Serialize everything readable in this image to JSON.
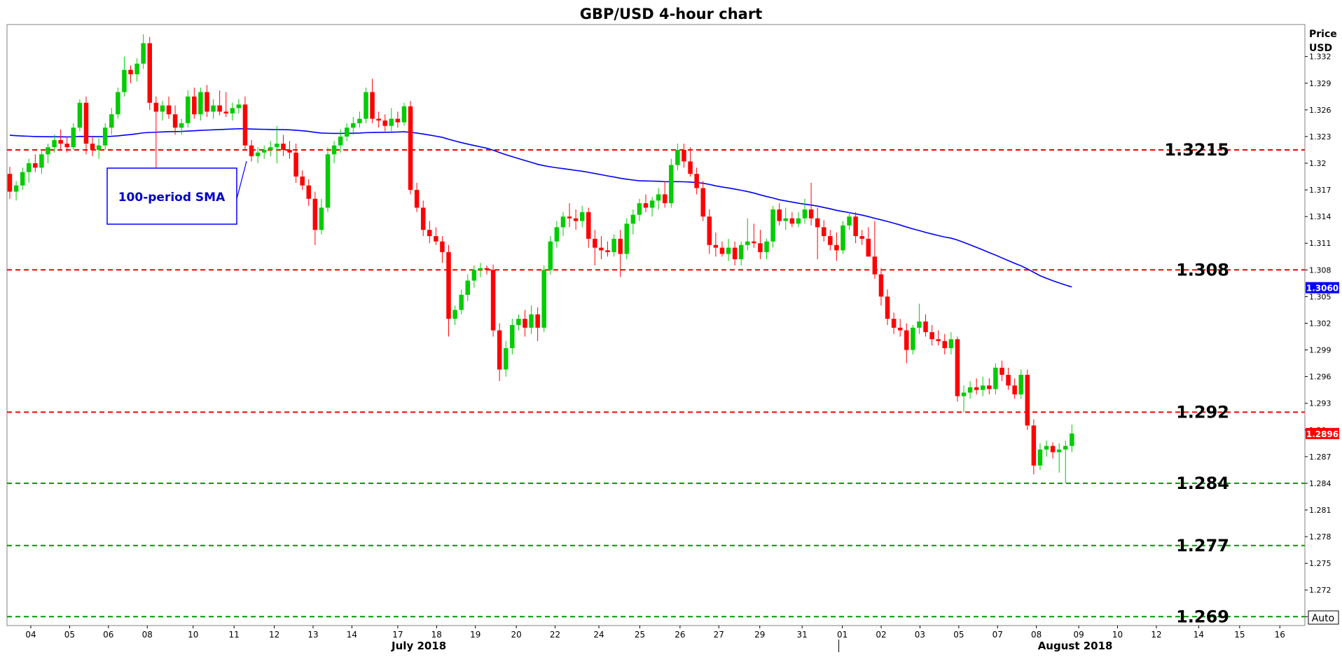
{
  "title": "GBP/USD 4-hour chart",
  "axis_title_line1": "Price",
  "axis_title_line2": "USD",
  "auto_label": "Auto",
  "sma_label": "100-period SMA",
  "colors": {
    "up": "#00cc00",
    "down": "#ff0000",
    "sma": "#0000ff",
    "resistance": "#ff0000",
    "support": "#009900",
    "badge_sma": "#0000ff",
    "badge_price": "#ff0000"
  },
  "chart_data": {
    "type": "candlestick",
    "title": "GBP/USD 4-hour chart",
    "ylabel": "Price USD",
    "ylim": [
      1.268,
      1.3356
    ],
    "yticks": [
      "1.332",
      "1.329",
      "1.326",
      "1.323",
      "1.32",
      "1.317",
      "1.314",
      "1.311",
      "1.308",
      "1.305",
      "1.302",
      "1.299",
      "1.296",
      "1.293",
      "1.29",
      "1.287",
      "1.284",
      "1.281",
      "1.278",
      "1.275",
      "1.272",
      "1.269"
    ],
    "x_ticks": [
      {
        "label": "04",
        "pos": 0.0
      },
      {
        "label": "05",
        "pos": 5.5
      },
      {
        "label": "06",
        "pos": 11.0
      },
      {
        "label": "08",
        "pos": 16.5
      },
      {
        "label": "10",
        "pos": 23.0
      },
      {
        "label": "11",
        "pos": 28.8
      },
      {
        "label": "12",
        "pos": 34.5
      },
      {
        "label": "13",
        "pos": 40.0
      },
      {
        "label": "14",
        "pos": 45.5
      },
      {
        "label": "17",
        "pos": 52.0
      },
      {
        "label": "18",
        "pos": 57.5
      },
      {
        "label": "19",
        "pos": 63.0
      },
      {
        "label": "20",
        "pos": 68.8
      },
      {
        "label": "22",
        "pos": 74.3
      },
      {
        "label": "24",
        "pos": 80.5
      },
      {
        "label": "25",
        "pos": 86.3
      },
      {
        "label": "26",
        "pos": 92.0
      },
      {
        "label": "27",
        "pos": 97.5
      },
      {
        "label": "29",
        "pos": 103.3
      },
      {
        "label": "31",
        "pos": 109.3
      },
      {
        "label": "01",
        "pos": 115.0
      },
      {
        "label": "02",
        "pos": 120.5
      },
      {
        "label": "03",
        "pos": 126.0
      },
      {
        "label": "05",
        "pos": 131.5
      },
      {
        "label": "07",
        "pos": 137.0
      },
      {
        "label": "08",
        "pos": 142.5
      },
      {
        "label": "09",
        "pos": 148.5
      },
      {
        "label": "10",
        "pos": 154.0
      },
      {
        "label": "12",
        "pos": 159.5
      },
      {
        "label": "14",
        "pos": 165.5
      },
      {
        "label": "15",
        "pos": 171.3
      },
      {
        "label": "16",
        "pos": 177.0
      }
    ],
    "month_labels": [
      {
        "label": "July 2018",
        "pos": 55.0
      },
      {
        "label": "August 2018",
        "pos": 148.0
      }
    ],
    "levels": [
      {
        "label": "1.3215",
        "value": 1.3215,
        "kind": "resistance"
      },
      {
        "label": "1.308",
        "value": 1.308,
        "kind": "resistance"
      },
      {
        "label": "1.292",
        "value": 1.292,
        "kind": "resistance"
      },
      {
        "label": "1.284",
        "value": 1.284,
        "kind": "support"
      },
      {
        "label": "1.277",
        "value": 1.277,
        "kind": "support"
      },
      {
        "label": "1.269",
        "value": 1.269,
        "kind": "support"
      }
    ],
    "last_price": {
      "label": "1.2896",
      "value": 1.2896
    },
    "sma_last": {
      "label": "1.3060",
      "value": 1.306
    },
    "candles": [
      [
        1.3188,
        1.3196,
        1.316,
        1.3168
      ],
      [
        1.3168,
        1.318,
        1.3158,
        1.3175
      ],
      [
        1.3175,
        1.3195,
        1.317,
        1.319
      ],
      [
        1.319,
        1.3205,
        1.3178,
        1.32
      ],
      [
        1.32,
        1.321,
        1.319,
        1.3195
      ],
      [
        1.3195,
        1.3215,
        1.3188,
        1.321
      ],
      [
        1.321,
        1.3222,
        1.32,
        1.3218
      ],
      [
        1.3218,
        1.3232,
        1.3212,
        1.3226
      ],
      [
        1.3226,
        1.3238,
        1.3215,
        1.3222
      ],
      [
        1.3222,
        1.323,
        1.3212,
        1.3218
      ],
      [
        1.3218,
        1.3245,
        1.3215,
        1.324
      ],
      [
        1.324,
        1.3272,
        1.3236,
        1.3268
      ],
      [
        1.3268,
        1.3275,
        1.321,
        1.3222
      ],
      [
        1.3222,
        1.323,
        1.3208,
        1.3215
      ],
      [
        1.3215,
        1.3228,
        1.3205,
        1.322
      ],
      [
        1.322,
        1.3245,
        1.3215,
        1.324
      ],
      [
        1.324,
        1.3262,
        1.3232,
        1.3255
      ],
      [
        1.3255,
        1.3285,
        1.325,
        1.328
      ],
      [
        1.328,
        1.332,
        1.3275,
        1.3305
      ],
      [
        1.3305,
        1.331,
        1.329,
        1.33
      ],
      [
        1.33,
        1.3318,
        1.3292,
        1.3312
      ],
      [
        1.3312,
        1.3345,
        1.3306,
        1.3335
      ],
      [
        1.3335,
        1.3342,
        1.326,
        1.3268
      ],
      [
        1.3268,
        1.3275,
        1.3195,
        1.3258
      ],
      [
        1.3258,
        1.327,
        1.3248,
        1.3265
      ],
      [
        1.3265,
        1.3275,
        1.325,
        1.3255
      ],
      [
        1.3255,
        1.3265,
        1.3232,
        1.324
      ],
      [
        1.324,
        1.325,
        1.3232,
        1.3245
      ],
      [
        1.3245,
        1.3282,
        1.324,
        1.3275
      ],
      [
        1.3275,
        1.3285,
        1.325,
        1.3255
      ],
      [
        1.3255,
        1.3285,
        1.3248,
        1.328
      ],
      [
        1.328,
        1.3288,
        1.3252,
        1.3258
      ],
      [
        1.3258,
        1.3272,
        1.325,
        1.3265
      ],
      [
        1.3265,
        1.3282,
        1.3254,
        1.3258
      ],
      [
        1.3258,
        1.328,
        1.3252,
        1.3256
      ],
      [
        1.3256,
        1.3268,
        1.3248,
        1.3262
      ],
      [
        1.3262,
        1.3272,
        1.3256,
        1.3266
      ],
      [
        1.3266,
        1.3275,
        1.3215,
        1.322
      ],
      [
        1.322,
        1.3226,
        1.3202,
        1.3208
      ],
      [
        1.3208,
        1.3218,
        1.32,
        1.3212
      ],
      [
        1.3212,
        1.322,
        1.3205,
        1.3215
      ],
      [
        1.3215,
        1.3225,
        1.3208,
        1.3218
      ],
      [
        1.3218,
        1.3242,
        1.32,
        1.3222
      ],
      [
        1.3222,
        1.3232,
        1.3208,
        1.3215
      ],
      [
        1.3215,
        1.3225,
        1.3205,
        1.3212
      ],
      [
        1.3212,
        1.3222,
        1.3178,
        1.3185
      ],
      [
        1.3185,
        1.3192,
        1.317,
        1.3175
      ],
      [
        1.3175,
        1.3182,
        1.3152,
        1.316
      ],
      [
        1.316,
        1.3168,
        1.3108,
        1.3125
      ],
      [
        1.3125,
        1.316,
        1.312,
        1.315
      ],
      [
        1.315,
        1.3218,
        1.3145,
        1.321
      ],
      [
        1.321,
        1.3225,
        1.32,
        1.322
      ],
      [
        1.322,
        1.3238,
        1.3212,
        1.323
      ],
      [
        1.323,
        1.3245,
        1.3225,
        1.324
      ],
      [
        1.324,
        1.3252,
        1.3232,
        1.3245
      ],
      [
        1.3245,
        1.3258,
        1.324,
        1.325
      ],
      [
        1.325,
        1.3285,
        1.3245,
        1.328
      ],
      [
        1.328,
        1.3295,
        1.3245,
        1.325
      ],
      [
        1.325,
        1.3258,
        1.324,
        1.3248
      ],
      [
        1.3248,
        1.3255,
        1.3236,
        1.3242
      ],
      [
        1.3242,
        1.3262,
        1.3236,
        1.325
      ],
      [
        1.325,
        1.3258,
        1.324,
        1.3246
      ],
      [
        1.3246,
        1.3268,
        1.3242,
        1.3264
      ],
      [
        1.3264,
        1.327,
        1.3165,
        1.317
      ],
      [
        1.317,
        1.3178,
        1.3145,
        1.315
      ],
      [
        1.315,
        1.3158,
        1.3118,
        1.3125
      ],
      [
        1.3125,
        1.3135,
        1.311,
        1.3118
      ],
      [
        1.3118,
        1.3128,
        1.3108,
        1.3112
      ],
      [
        1.3112,
        1.3118,
        1.3088,
        1.31
      ],
      [
        1.31,
        1.3108,
        1.3005,
        1.3025
      ],
      [
        1.3025,
        1.304,
        1.3018,
        1.3035
      ],
      [
        1.3035,
        1.3058,
        1.303,
        1.3052
      ],
      [
        1.3052,
        1.3075,
        1.3045,
        1.3068
      ],
      [
        1.3068,
        1.3085,
        1.306,
        1.308
      ],
      [
        1.308,
        1.3088,
        1.3072,
        1.3082
      ],
      [
        1.3082,
        1.3085,
        1.3075,
        1.308
      ],
      [
        1.308,
        1.3086,
        1.3005,
        1.3012
      ],
      [
        1.3012,
        1.302,
        1.2955,
        1.2968
      ],
      [
        1.2968,
        1.3,
        1.296,
        1.2992
      ],
      [
        1.2992,
        1.3025,
        1.2985,
        1.3018
      ],
      [
        1.3018,
        1.303,
        1.3012,
        1.3025
      ],
      [
        1.3025,
        1.3035,
        1.3005,
        1.3015
      ],
      [
        1.3015,
        1.304,
        1.3008,
        1.303
      ],
      [
        1.303,
        1.3038,
        1.3,
        1.3015
      ],
      [
        1.3015,
        1.3085,
        1.301,
        1.308
      ],
      [
        1.308,
        1.3118,
        1.3075,
        1.3112
      ],
      [
        1.3112,
        1.3135,
        1.3105,
        1.3128
      ],
      [
        1.3128,
        1.3145,
        1.3118,
        1.314
      ],
      [
        1.314,
        1.3155,
        1.3128,
        1.3138
      ],
      [
        1.3138,
        1.3148,
        1.3125,
        1.3135
      ],
      [
        1.3135,
        1.3152,
        1.3128,
        1.3145
      ],
      [
        1.3145,
        1.315,
        1.3105,
        1.3115
      ],
      [
        1.3115,
        1.3125,
        1.3085,
        1.3105
      ],
      [
        1.3105,
        1.3118,
        1.3092,
        1.3102
      ],
      [
        1.3102,
        1.3112,
        1.3095,
        1.31
      ],
      [
        1.31,
        1.312,
        1.3095,
        1.3115
      ],
      [
        1.3115,
        1.3125,
        1.3072,
        1.3098
      ],
      [
        1.3098,
        1.3138,
        1.3092,
        1.3132
      ],
      [
        1.3132,
        1.3148,
        1.312,
        1.3142
      ],
      [
        1.3142,
        1.316,
        1.3135,
        1.3155
      ],
      [
        1.3155,
        1.3165,
        1.3145,
        1.315
      ],
      [
        1.315,
        1.3162,
        1.314,
        1.3158
      ],
      [
        1.3158,
        1.3172,
        1.3148,
        1.3165
      ],
      [
        1.3165,
        1.318,
        1.315,
        1.3155
      ],
      [
        1.3155,
        1.3205,
        1.315,
        1.3198
      ],
      [
        1.3198,
        1.3222,
        1.3192,
        1.3215
      ],
      [
        1.3215,
        1.3222,
        1.3195,
        1.3202
      ],
      [
        1.3202,
        1.3218,
        1.3185,
        1.3188
      ],
      [
        1.3188,
        1.3195,
        1.3165,
        1.3172
      ],
      [
        1.3172,
        1.318,
        1.3135,
        1.314
      ],
      [
        1.314,
        1.3148,
        1.3098,
        1.3108
      ],
      [
        1.3108,
        1.3122,
        1.3095,
        1.3105
      ],
      [
        1.3105,
        1.3112,
        1.3095,
        1.3098
      ],
      [
        1.3098,
        1.3115,
        1.309,
        1.3105
      ],
      [
        1.3105,
        1.3112,
        1.3085,
        1.3092
      ],
      [
        1.3092,
        1.3112,
        1.3085,
        1.3108
      ],
      [
        1.3108,
        1.3138,
        1.3102,
        1.3112
      ],
      [
        1.3112,
        1.3132,
        1.3105,
        1.311
      ],
      [
        1.311,
        1.3125,
        1.3092,
        1.31
      ],
      [
        1.31,
        1.3115,
        1.3092,
        1.3112
      ],
      [
        1.3112,
        1.3152,
        1.3105,
        1.3148
      ],
      [
        1.3148,
        1.3155,
        1.313,
        1.3135
      ],
      [
        1.3135,
        1.315,
        1.3125,
        1.3138
      ],
      [
        1.3138,
        1.3145,
        1.3128,
        1.3132
      ],
      [
        1.3132,
        1.3145,
        1.3128,
        1.3138
      ],
      [
        1.3138,
        1.316,
        1.3132,
        1.3148
      ],
      [
        1.3148,
        1.3178,
        1.313,
        1.3138
      ],
      [
        1.3138,
        1.315,
        1.3092,
        1.3128
      ],
      [
        1.3128,
        1.3136,
        1.3112,
        1.3118
      ],
      [
        1.3118,
        1.3125,
        1.3102,
        1.3108
      ],
      [
        1.3108,
        1.3122,
        1.309,
        1.3102
      ],
      [
        1.3102,
        1.3135,
        1.3098,
        1.313
      ],
      [
        1.313,
        1.3145,
        1.3125,
        1.314
      ],
      [
        1.314,
        1.3145,
        1.311,
        1.3118
      ],
      [
        1.3118,
        1.3125,
        1.3108,
        1.3115
      ],
      [
        1.3115,
        1.3128,
        1.31,
        1.3095
      ],
      [
        1.3095,
        1.3135,
        1.307,
        1.3075
      ],
      [
        1.3075,
        1.3082,
        1.304,
        1.305
      ],
      [
        1.305,
        1.3058,
        1.3018,
        1.3025
      ],
      [
        1.3025,
        1.3032,
        1.3008,
        1.3015
      ],
      [
        1.3015,
        1.3025,
        1.3005,
        1.3012
      ],
      [
        1.3012,
        1.302,
        1.2975,
        1.299
      ],
      [
        1.299,
        1.3018,
        1.2985,
        1.3015
      ],
      [
        1.3015,
        1.3042,
        1.3008,
        1.3022
      ],
      [
        1.3022,
        1.303,
        1.3005,
        1.301
      ],
      [
        1.301,
        1.3018,
        1.2995,
        1.3002
      ],
      [
        1.3002,
        1.3012,
        1.2995,
        1.3
      ],
      [
        1.3,
        1.3008,
        1.2985,
        1.2992
      ],
      [
        1.2992,
        1.301,
        1.2985,
        1.3002
      ],
      [
        1.3002,
        1.3005,
        1.2932,
        1.2938
      ],
      [
        1.2938,
        1.295,
        1.292,
        1.2942
      ],
      [
        1.2942,
        1.2955,
        1.2935,
        1.2948
      ],
      [
        1.2948,
        1.2958,
        1.294,
        1.2945
      ],
      [
        1.2945,
        1.296,
        1.2938,
        1.295
      ],
      [
        1.295,
        1.2958,
        1.294,
        1.2946
      ],
      [
        1.2946,
        1.2975,
        1.294,
        1.297
      ],
      [
        1.297,
        1.2978,
        1.2955,
        1.2962
      ],
      [
        1.2962,
        1.297,
        1.2945,
        1.295
      ],
      [
        1.295,
        1.2958,
        1.2935,
        1.294
      ],
      [
        1.294,
        1.2968,
        1.2935,
        1.2962
      ],
      [
        1.2962,
        1.2968,
        1.29,
        1.2905
      ],
      [
        1.2905,
        1.2912,
        1.285,
        1.286
      ],
      [
        1.286,
        1.2885,
        1.2855,
        1.2878
      ],
      [
        1.2878,
        1.2888,
        1.287,
        1.2882
      ],
      [
        1.2882,
        1.2886,
        1.2868,
        1.2875
      ],
      [
        1.2875,
        1.2885,
        1.2852,
        1.2878
      ],
      [
        1.2878,
        1.2888,
        1.284,
        1.2882
      ],
      [
        1.2882,
        1.2906,
        1.2875,
        1.2896
      ]
    ]
  }
}
